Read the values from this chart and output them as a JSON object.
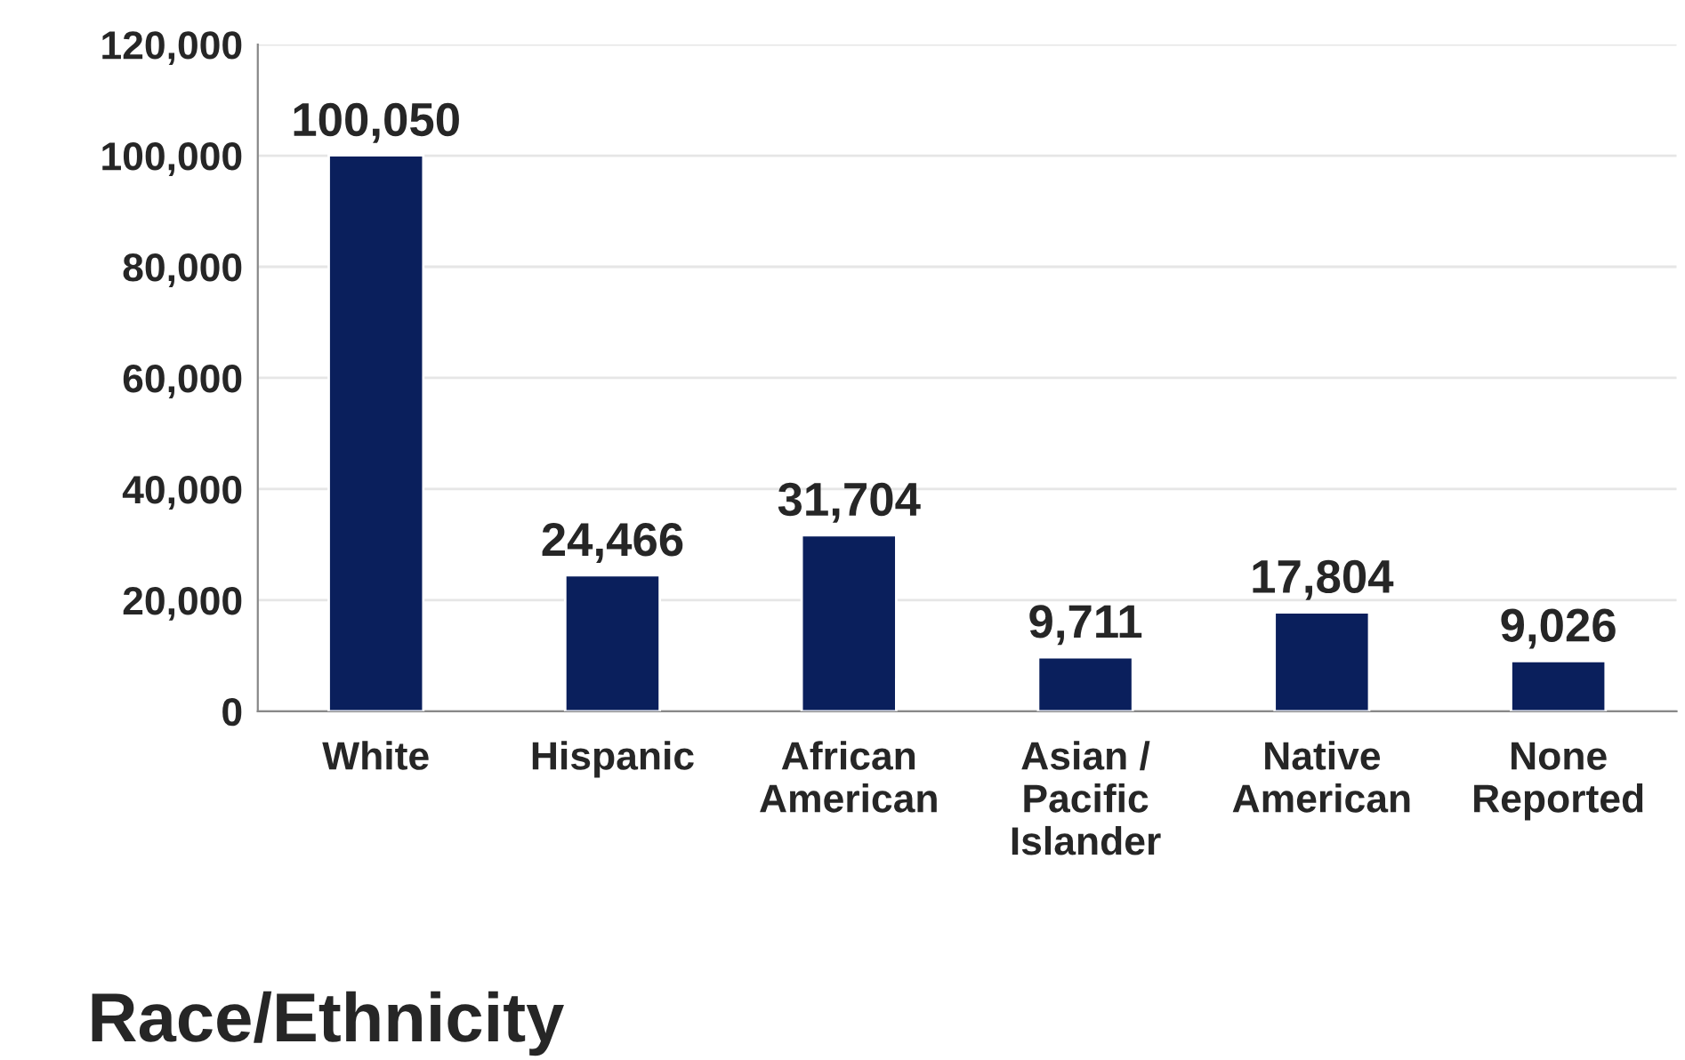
{
  "chart_data": {
    "type": "bar",
    "xlabel": "Race/Ethnicity",
    "categories": [
      "White",
      "Hispanic",
      "African\nAmerican",
      "Asian /\nPacific\nIslander",
      "Native\nAmerican",
      "None\nReported"
    ],
    "values": [
      100050,
      24466,
      31704,
      9711,
      17804,
      9026
    ],
    "color": "#0a1f5c",
    "ylim": [
      0,
      120000
    ],
    "yticks": [
      {
        "value": 0,
        "label": "0"
      },
      {
        "value": 20000,
        "label": "20,000"
      },
      {
        "value": 40000,
        "label": "40,000"
      },
      {
        "value": 60000,
        "label": "60,000"
      },
      {
        "value": 80000,
        "label": "80,000"
      },
      {
        "value": 100000,
        "label": "100,000"
      },
      {
        "value": 120000,
        "label": "120,000"
      }
    ],
    "value_labels": [
      "100,050",
      "24,466",
      "31,704",
      "9,711",
      "17,804",
      "9,026"
    ],
    "grid": "y",
    "legend": false
  }
}
